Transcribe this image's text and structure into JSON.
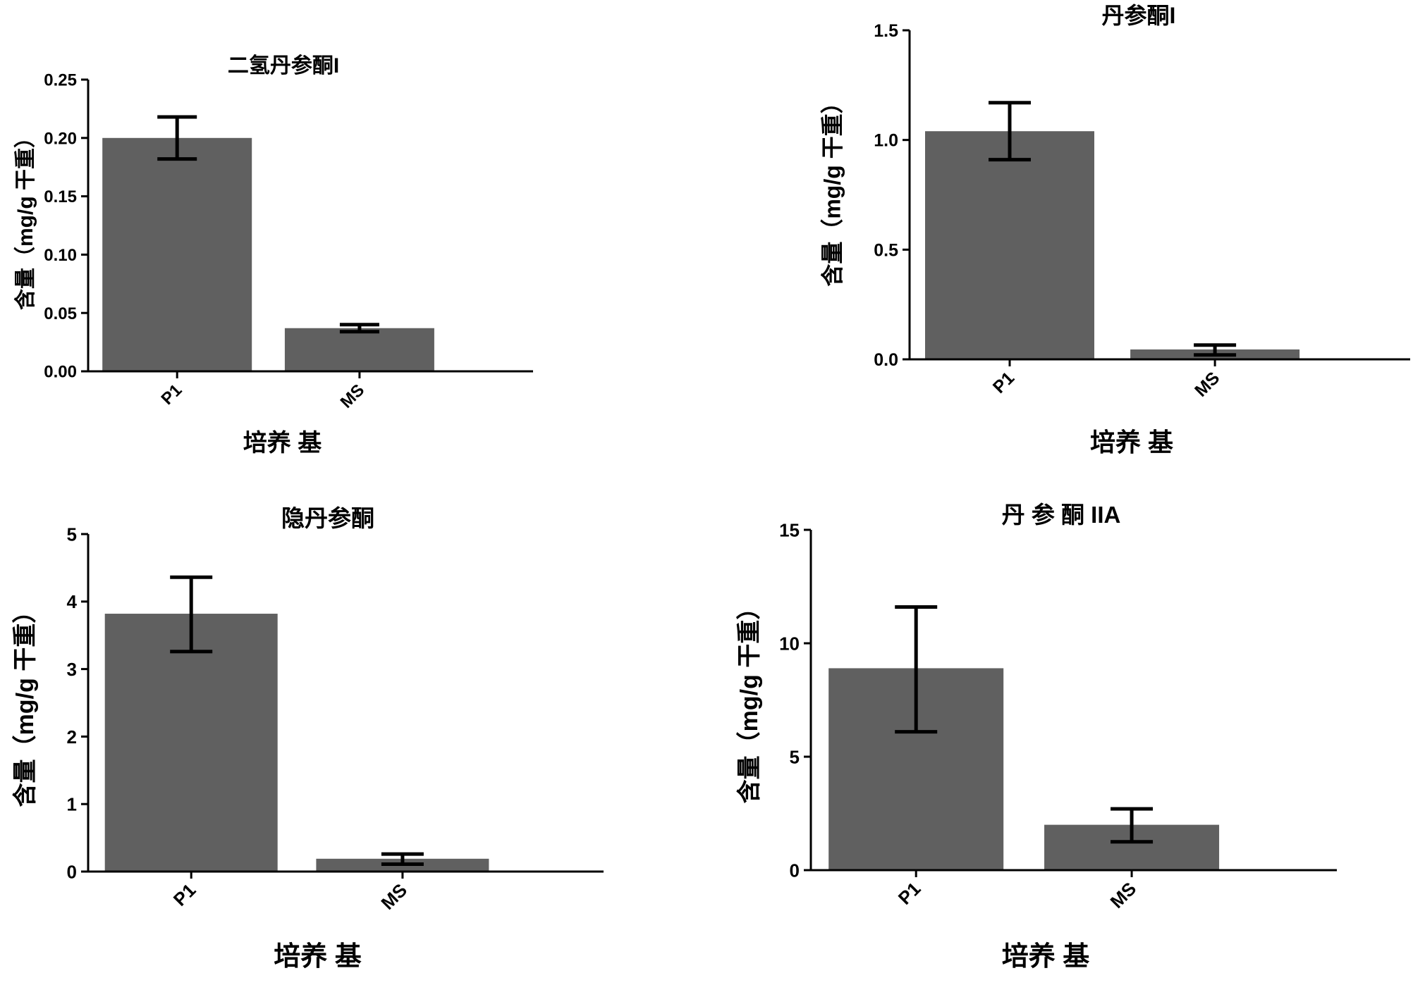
{
  "colors": {
    "bar": "#606060",
    "axis": "#000000",
    "error_bar": "#000000"
  },
  "chart_data": [
    {
      "type": "bar",
      "title": "二氢丹参酮I",
      "xlabel": "培养 基",
      "ylabel": "含量（mg/g 干重）",
      "categories": [
        "P1",
        "MS"
      ],
      "values": [
        0.2,
        0.037
      ],
      "error_low": [
        0.182,
        0.034
      ],
      "error_high": [
        0.218,
        0.04
      ],
      "ylim": [
        0,
        0.25
      ],
      "yticks": [
        "0.00",
        "0.05",
        "0.10",
        "0.15",
        "0.20",
        "0.25"
      ],
      "grid": false
    },
    {
      "type": "bar",
      "title": "丹参酮I",
      "xlabel": "培养 基",
      "ylabel": "含量（mg/g 干重）",
      "categories": [
        "P1",
        "MS"
      ],
      "values": [
        1.04,
        0.045
      ],
      "error_low": [
        0.91,
        0.02
      ],
      "error_high": [
        1.17,
        0.065
      ],
      "ylim": [
        0,
        1.5
      ],
      "yticks": [
        "0.0",
        "0.5",
        "1.0",
        "1.5"
      ],
      "grid": false
    },
    {
      "type": "bar",
      "title": "隐丹参酮",
      "xlabel": "培养 基",
      "ylabel": "含量（mg/g 干重）",
      "categories": [
        "P1",
        "MS"
      ],
      "values": [
        3.82,
        0.19
      ],
      "error_low": [
        3.26,
        0.11
      ],
      "error_high": [
        4.36,
        0.26
      ],
      "ylim": [
        0,
        5
      ],
      "yticks": [
        "0",
        "1",
        "2",
        "3",
        "4",
        "5"
      ],
      "grid": false
    },
    {
      "type": "bar",
      "title": "丹 参 酮 IIA",
      "xlabel": "培养 基",
      "ylabel": "含量（mg/g 干重）",
      "categories": [
        "P1",
        "MS"
      ],
      "values": [
        8.9,
        2.0
      ],
      "error_low": [
        6.1,
        1.25
      ],
      "error_high": [
        11.6,
        2.7
      ],
      "ylim": [
        0,
        15
      ],
      "yticks": [
        "0",
        "5",
        "10",
        "15"
      ],
      "grid": false
    }
  ]
}
